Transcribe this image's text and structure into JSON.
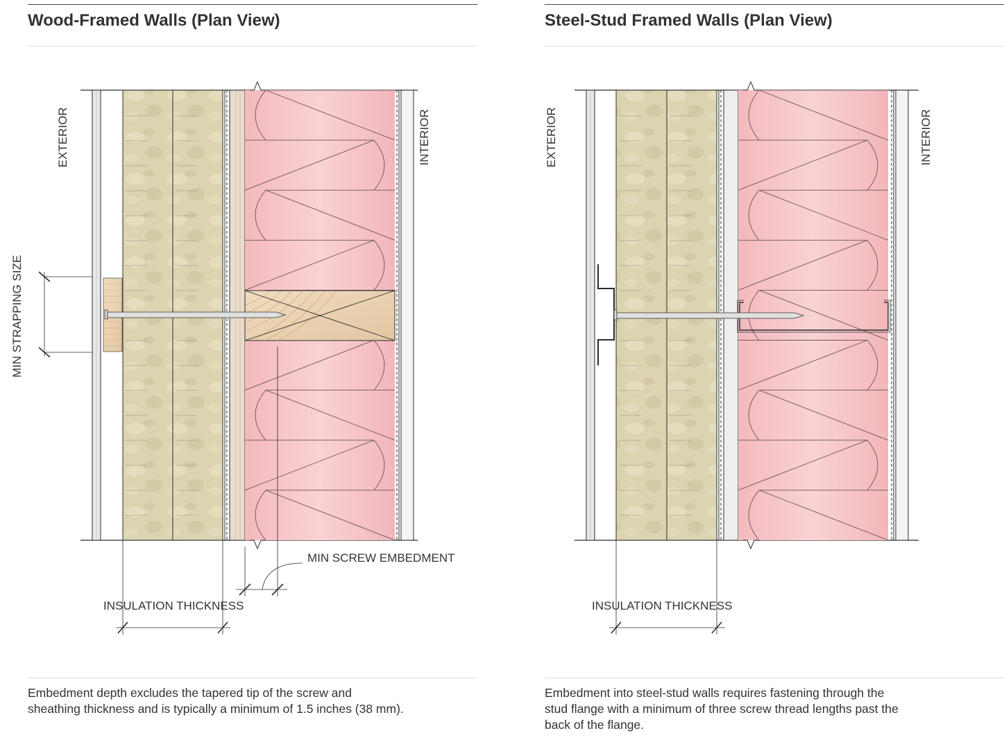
{
  "left": {
    "title": "Wood-Framed Walls (Plan View)",
    "labels": {
      "exterior": "EXTERIOR",
      "interior": "INTERIOR",
      "strapping": "MIN STRAPPING SIZE",
      "embedment": "MIN SCREW EMBEDMENT",
      "insulation": "INSULATION THICKNESS"
    },
    "caption": [
      "Embedment depth excludes the tapered tip of the screw and",
      "sheathing thickness and is typically a minimum of 1.5 inches (38 mm)."
    ]
  },
  "right": {
    "title": "Steel-Stud Framed Walls (Plan View)",
    "labels": {
      "exterior": "EXTERIOR",
      "interior": "INTERIOR",
      "insulation": "INSULATION THICKNESS"
    },
    "caption": [
      "Embedment into steel-stud walls requires fastening through the",
      "stud flange with a minimum of three screw thread lengths past the",
      "back of the flange."
    ]
  },
  "colors": {
    "mineral_wool": "#ddd5b3",
    "batt_insulation": "#f6c3c6",
    "wood": "#e9d3b6",
    "line": "#2b2b2b"
  }
}
